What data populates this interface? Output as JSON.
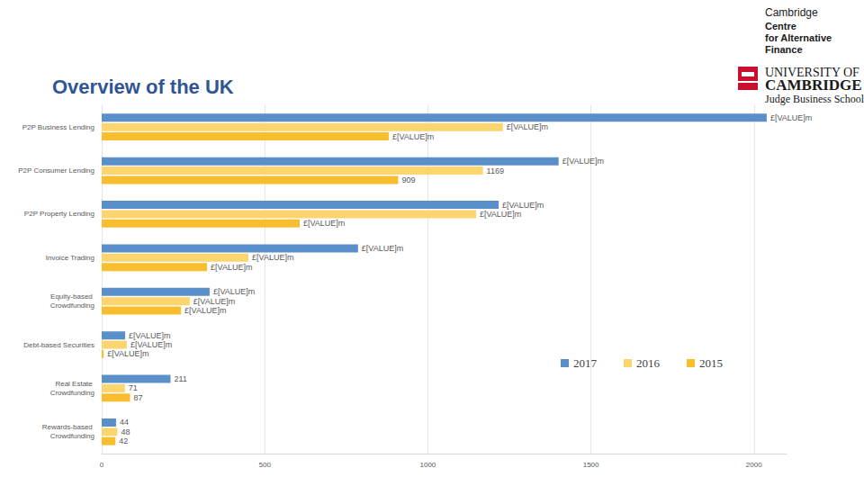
{
  "chart_data": {
    "type": "bar",
    "title": "Overview of the UK",
    "annotations": [
      "Cambridge",
      "Centre",
      "for Alternative",
      "Finance",
      "UNIVERSITY OF",
      "CAMBRIDGE",
      "Judge Business School"
    ],
    "orientation": "horizontal",
    "categories": [
      "P2P Business Lending",
      "P2P Consumer Lending",
      "P2P Property Lending",
      "Invoice Trading",
      "Equity-based Crowdfunding",
      "Debt-based Securities",
      "Real Estate Crowdfunding",
      "Rewards-based Crowdfunding"
    ],
    "series": [
      {
        "name": "2017",
        "color": "#5b8fc9",
        "values": [
          2039,
          1401,
          1217,
          786,
          331,
          72,
          211,
          44
        ],
        "value_labels": [
          "£[VALUE]m",
          "£[VALUE]m",
          "£[VALUE]m",
          "£[VALUE]m",
          "£[VALUE]m",
          "£[VALUE]m",
          "211",
          "44"
        ]
      },
      {
        "name": "2016",
        "color": "#fdd56e",
        "values": [
          1230,
          1169,
          1148,
          450,
          270,
          77,
          71,
          48
        ],
        "value_labels": [
          "£[VALUE]m",
          "1169",
          "£[VALUE]m",
          "£[VALUE]m",
          "£[VALUE]m",
          "£[VALUE]m",
          "71",
          "48"
        ]
      },
      {
        "name": "2015",
        "color": "#f9be2e",
        "values": [
          880,
          909,
          607,
          323,
          243,
          6,
          87,
          42
        ],
        "value_labels": [
          "£[VALUE]m",
          "909",
          "£[VALUE]m",
          "£[VALUE]m",
          "£[VALUE]m",
          "£[VALUE]m",
          "87",
          "42"
        ]
      }
    ],
    "xlim": [
      0,
      2100
    ],
    "xticks": [
      0,
      500,
      1000,
      1500,
      2000
    ],
    "grid": true,
    "legend": "right",
    "data_labels": true
  }
}
